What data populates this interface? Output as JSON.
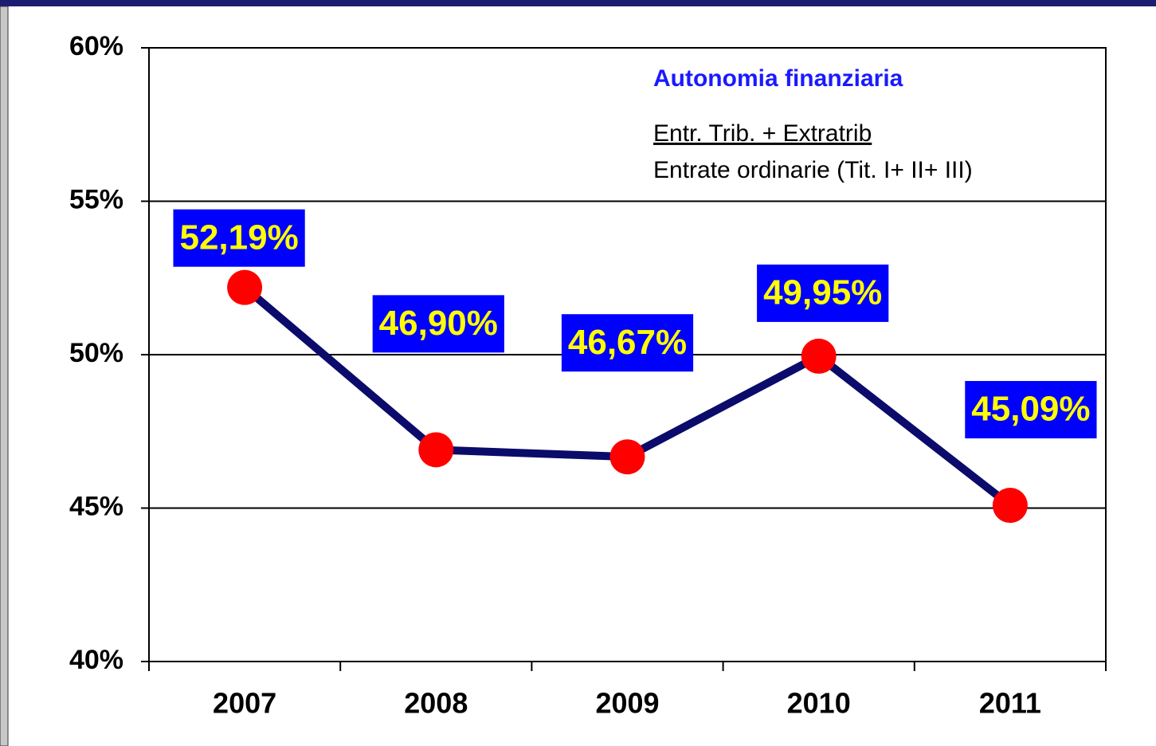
{
  "chart_data": {
    "type": "line",
    "annotations": [
      "Autonomia finanziaria",
      "Entr. Trib. + Extratrib",
      "Entrate ordinarie (Tit. I+ II+ III)"
    ],
    "categories": [
      "2007",
      "2008",
      "2009",
      "2010",
      "2011"
    ],
    "series": [
      {
        "name": null,
        "color": "#0b0b6b",
        "marker_color": "#ff0000",
        "values": [
          52.19,
          46.9,
          46.67,
          49.95,
          45.09
        ],
        "value_labels": [
          "52,19%",
          "46,90%",
          "46,67%",
          "49,95%",
          "45,09%"
        ]
      }
    ],
    "ylim": [
      40,
      60
    ],
    "yticks": [
      {
        "value": 40,
        "label": "40%"
      },
      {
        "value": 45,
        "label": "45%"
      },
      {
        "value": 50,
        "label": "50%"
      },
      {
        "value": 55,
        "label": "55%"
      },
      {
        "value": 60,
        "label": "60%"
      }
    ],
    "grid": true,
    "legend": false
  }
}
